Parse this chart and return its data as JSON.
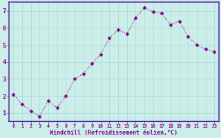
{
  "x": [
    0,
    1,
    2,
    3,
    4,
    5,
    6,
    7,
    8,
    9,
    10,
    11,
    12,
    13,
    14,
    15,
    16,
    17,
    18,
    19,
    20,
    21,
    22,
    23
  ],
  "y": [
    2.1,
    1.5,
    1.1,
    0.8,
    1.7,
    1.3,
    2.0,
    3.0,
    3.3,
    3.9,
    4.45,
    5.4,
    5.9,
    5.65,
    6.6,
    7.2,
    6.95,
    6.85,
    6.2,
    6.4,
    5.5,
    5.0,
    4.75,
    4.6
  ],
  "line_color": "#880088",
  "marker": "D",
  "marker_size": 2.5,
  "bg_color": "#cceee8",
  "grid_color": "#aadddd",
  "xlabel": "Windchill (Refroidissement éolien,°C)",
  "xlabel_color": "#880088",
  "tick_color": "#880088",
  "axis_color": "#6633aa",
  "ylim": [
    0.5,
    7.5
  ],
  "xlim": [
    -0.5,
    23.5
  ],
  "yticks": [
    1,
    2,
    3,
    4,
    5,
    6,
    7
  ],
  "xticks": [
    0,
    1,
    2,
    3,
    4,
    5,
    6,
    7,
    8,
    9,
    10,
    11,
    12,
    13,
    14,
    15,
    16,
    17,
    18,
    19,
    20,
    21,
    22,
    23
  ],
  "xtick_labels": [
    "0",
    "1",
    "2",
    "3",
    "4",
    "5",
    "6",
    "7",
    "8",
    "9",
    "10",
    "11",
    "12",
    "13",
    "14",
    "15",
    "16",
    "17",
    "18",
    "19",
    "20",
    "21",
    "22",
    "23"
  ]
}
